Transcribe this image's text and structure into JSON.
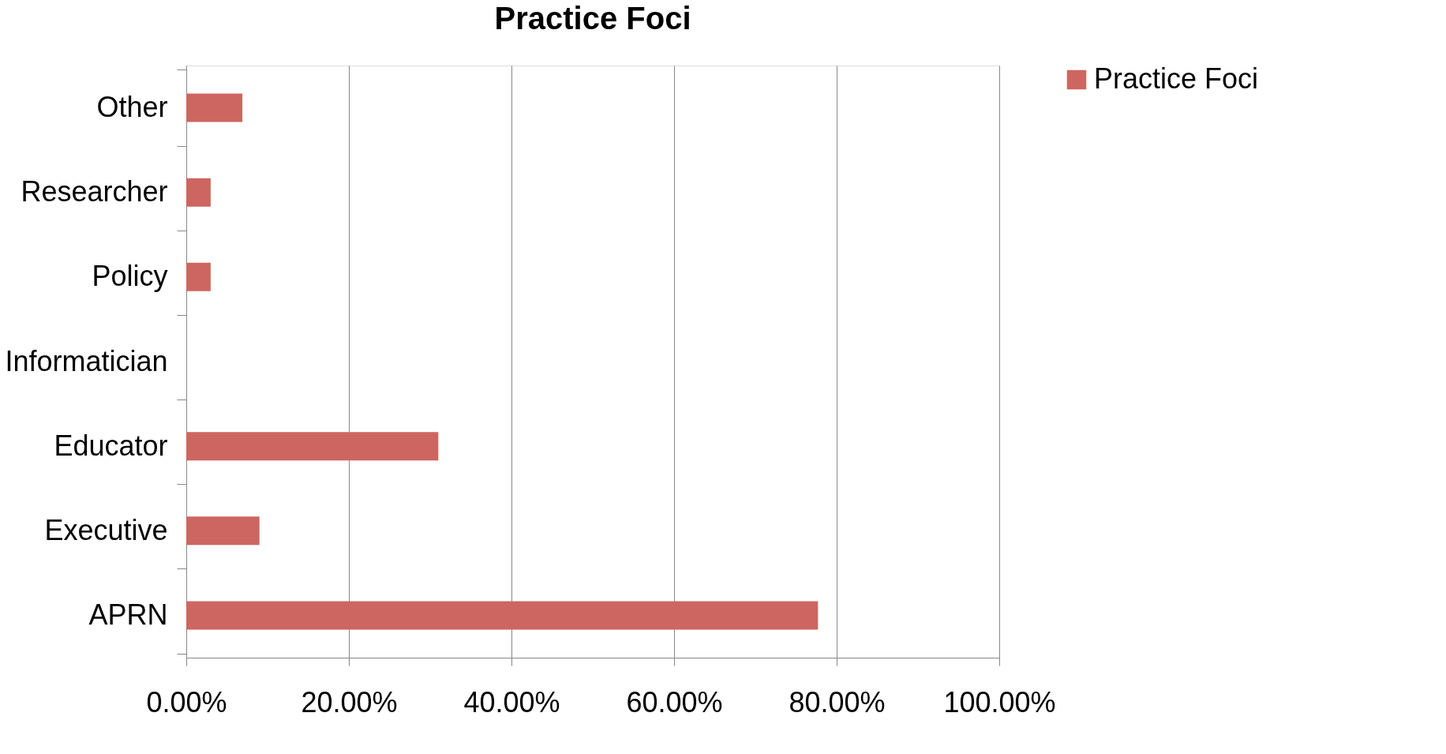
{
  "chart_data": {
    "type": "bar",
    "title": "Practice Foci",
    "orientation": "horizontal",
    "categories": [
      "Other",
      "Researcher",
      "Policy",
      "Informatician",
      "Educator",
      "Executive",
      "APRN"
    ],
    "series": [
      {
        "name": "Practice Foci",
        "color": "#cd6660",
        "values": [
          6.9,
          3.0,
          3.0,
          0,
          31.0,
          9.0,
          77.7
        ]
      }
    ],
    "xlim": [
      0,
      100
    ],
    "xticks": [
      {
        "value": 0,
        "label": "0.00%"
      },
      {
        "value": 20,
        "label": "20.00%"
      },
      {
        "value": 40,
        "label": "40.00%"
      },
      {
        "value": 60,
        "label": "60.00%"
      },
      {
        "value": 80,
        "label": "80.00%"
      },
      {
        "value": 100,
        "label": "100.00%"
      }
    ],
    "grid": "x",
    "legend": "right"
  }
}
